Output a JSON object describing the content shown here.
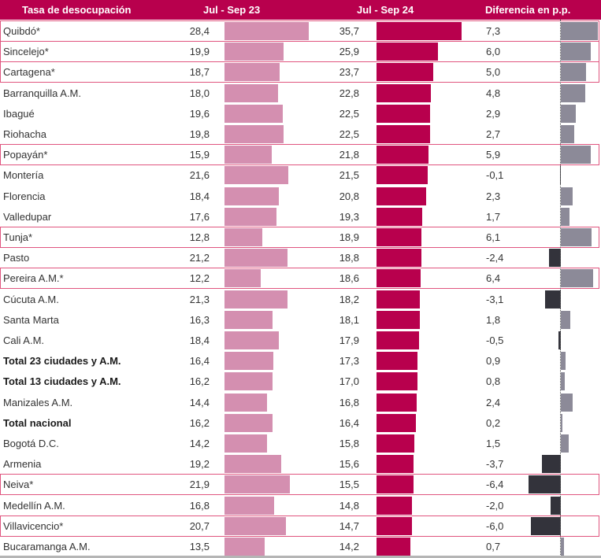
{
  "header": {
    "category": "Tasa de desocupación",
    "col1": "Jul - Sep 23",
    "col2": "Jul - Sep 24",
    "col3": "Diferencia en p.p."
  },
  "colors": {
    "header_bg": "#B8004D",
    "bar_2023": "#D48FB0",
    "bar_2024": "#B8004D",
    "diff_positive": "#8C8A98",
    "diff_negative": "#33333B",
    "highlight_border": "#E0557F"
  },
  "chart_data": {
    "type": "bar",
    "title": "Tasa de desocupación",
    "orientation": "horizontal",
    "series_names": [
      "Jul - Sep 23",
      "Jul - Sep 24",
      "Diferencia en p.p."
    ],
    "note": "Rows marked with * are highlighted with a pink border",
    "rows": [
      {
        "name": "Quibdó*",
        "v23": "28,4",
        "v24": "35,7",
        "diff": "7,3",
        "n23": 28.4,
        "n24": 35.7,
        "nd": 7.3,
        "highlight": true,
        "bold": false
      },
      {
        "name": "Sincelejo*",
        "v23": "19,9",
        "v24": "25,9",
        "diff": "6,0",
        "n23": 19.9,
        "n24": 25.9,
        "nd": 6.0,
        "highlight": true,
        "bold": false
      },
      {
        "name": "Cartagena*",
        "v23": "18,7",
        "v24": "23,7",
        "diff": "5,0",
        "n23": 18.7,
        "n24": 23.7,
        "nd": 5.0,
        "highlight": true,
        "bold": false
      },
      {
        "name": "Barranquilla A.M.",
        "v23": "18,0",
        "v24": "22,8",
        "diff": "4,8",
        "n23": 18.0,
        "n24": 22.8,
        "nd": 4.8,
        "highlight": false,
        "bold": false
      },
      {
        "name": "Ibagué",
        "v23": "19,6",
        "v24": "22,5",
        "diff": "2,9",
        "n23": 19.6,
        "n24": 22.5,
        "nd": 2.9,
        "highlight": false,
        "bold": false
      },
      {
        "name": "Riohacha",
        "v23": "19,8",
        "v24": "22,5",
        "diff": "2,7",
        "n23": 19.8,
        "n24": 22.5,
        "nd": 2.7,
        "highlight": false,
        "bold": false
      },
      {
        "name": "Popayán*",
        "v23": "15,9",
        "v24": "21,8",
        "diff": "5,9",
        "n23": 15.9,
        "n24": 21.8,
        "nd": 5.9,
        "highlight": true,
        "bold": false
      },
      {
        "name": "Montería",
        "v23": "21,6",
        "v24": "21,5",
        "diff": "-0,1",
        "n23": 21.6,
        "n24": 21.5,
        "nd": -0.1,
        "highlight": false,
        "bold": false
      },
      {
        "name": "Florencia",
        "v23": "18,4",
        "v24": "20,8",
        "diff": "2,3",
        "n23": 18.4,
        "n24": 20.8,
        "nd": 2.3,
        "highlight": false,
        "bold": false
      },
      {
        "name": "Valledupar",
        "v23": "17,6",
        "v24": "19,3",
        "diff": "1,7",
        "n23": 17.6,
        "n24": 19.3,
        "nd": 1.7,
        "highlight": false,
        "bold": false
      },
      {
        "name": "Tunja*",
        "v23": "12,8",
        "v24": "18,9",
        "diff": "6,1",
        "n23": 12.8,
        "n24": 18.9,
        "nd": 6.1,
        "highlight": true,
        "bold": false
      },
      {
        "name": "Pasto",
        "v23": "21,2",
        "v24": "18,8",
        "diff": "-2,4",
        "n23": 21.2,
        "n24": 18.8,
        "nd": -2.4,
        "highlight": false,
        "bold": false
      },
      {
        "name": "Pereira A.M.*",
        "v23": "12,2",
        "v24": "18,6",
        "diff": "6,4",
        "n23": 12.2,
        "n24": 18.6,
        "nd": 6.4,
        "highlight": true,
        "bold": false
      },
      {
        "name": "Cúcuta A.M.",
        "v23": "21,3",
        "v24": "18,2",
        "diff": "-3,1",
        "n23": 21.3,
        "n24": 18.2,
        "nd": -3.1,
        "highlight": false,
        "bold": false
      },
      {
        "name": "Santa Marta",
        "v23": "16,3",
        "v24": "18,1",
        "diff": "1,8",
        "n23": 16.3,
        "n24": 18.1,
        "nd": 1.8,
        "highlight": false,
        "bold": false
      },
      {
        "name": "Cali A.M.",
        "v23": "18,4",
        "v24": "17,9",
        "diff": "-0,5",
        "n23": 18.4,
        "n24": 17.9,
        "nd": -0.5,
        "highlight": false,
        "bold": false
      },
      {
        "name": "Total 23 ciudades y A.M.",
        "v23": "16,4",
        "v24": "17,3",
        "diff": "0,9",
        "n23": 16.4,
        "n24": 17.3,
        "nd": 0.9,
        "highlight": false,
        "bold": true
      },
      {
        "name": "Total 13 ciudades y A.M.",
        "v23": "16,2",
        "v24": "17,0",
        "diff": "0,8",
        "n23": 16.2,
        "n24": 17.0,
        "nd": 0.8,
        "highlight": false,
        "bold": true
      },
      {
        "name": "Manizales A.M.",
        "v23": "14,4",
        "v24": "16,8",
        "diff": "2,4",
        "n23": 14.4,
        "n24": 16.8,
        "nd": 2.4,
        "highlight": false,
        "bold": false
      },
      {
        "name": "Total nacional",
        "v23": "16,2",
        "v24": "16,4",
        "diff": "0,2",
        "n23": 16.2,
        "n24": 16.4,
        "nd": 0.2,
        "highlight": false,
        "bold": true
      },
      {
        "name": "Bogotá D.C.",
        "v23": "14,2",
        "v24": "15,8",
        "diff": "1,5",
        "n23": 14.2,
        "n24": 15.8,
        "nd": 1.5,
        "highlight": false,
        "bold": false
      },
      {
        "name": "Armenia",
        "v23": "19,2",
        "v24": "15,6",
        "diff": "-3,7",
        "n23": 19.2,
        "n24": 15.6,
        "nd": -3.7,
        "highlight": false,
        "bold": false
      },
      {
        "name": "Neiva*",
        "v23": "21,9",
        "v24": "15,5",
        "diff": "-6,4",
        "n23": 21.9,
        "n24": 15.5,
        "nd": -6.4,
        "highlight": true,
        "bold": false
      },
      {
        "name": "Medellín A.M.",
        "v23": "16,8",
        "v24": "14,8",
        "diff": "-2,0",
        "n23": 16.8,
        "n24": 14.8,
        "nd": -2.0,
        "highlight": false,
        "bold": false
      },
      {
        "name": "Villavicencio*",
        "v23": "20,7",
        "v24": "14,7",
        "diff": "-6,0",
        "n23": 20.7,
        "n24": 14.7,
        "nd": -6.0,
        "highlight": true,
        "bold": false
      },
      {
        "name": "Bucaramanga A.M.",
        "v23": "13,5",
        "v24": "14,2",
        "diff": "0,7",
        "n23": 13.5,
        "n24": 14.2,
        "nd": 0.7,
        "highlight": false,
        "bold": false
      }
    ]
  }
}
